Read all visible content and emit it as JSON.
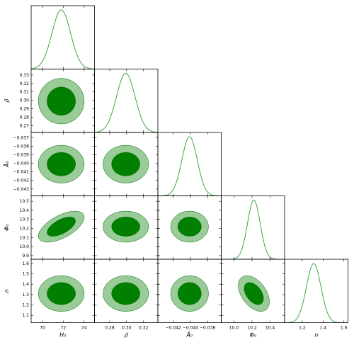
{
  "chart_data": {
    "type": "corner",
    "parameters": [
      {
        "label": "H₀",
        "range": [
          68.9,
          75.0
        ],
        "ticks": [
          70,
          72,
          74
        ],
        "tick_labels": [
          "70",
          "72",
          "74"
        ],
        "mean": 71.8,
        "sigma": 0.9
      },
      {
        "label": "ρ̃",
        "range": [
          0.262,
          0.337
        ],
        "ticks": [
          0.28,
          0.3,
          0.32
        ],
        "tick_labels": [
          "0.28",
          "0.30",
          "0.32"
        ],
        "mean": 0.299,
        "sigma": 0.011
      },
      {
        "label": "Å₀",
        "range": [
          -0.0438,
          -0.0364
        ],
        "ticks": [
          -0.042,
          -0.04,
          -0.038
        ],
        "y_ticks": [
          -0.043,
          -0.042,
          -0.041,
          -0.04,
          -0.039,
          -0.038,
          -0.037
        ],
        "tick_labels": [
          "−0.042",
          "−0.040",
          "−0.038"
        ],
        "y_tick_labels": [
          "−0.043",
          "−0.042",
          "−0.041",
          "−0.040",
          "−0.039",
          "−0.038",
          "−0.037"
        ],
        "mean": -0.0401,
        "sigma": 0.0009
      },
      {
        "label": "Φ₀",
        "range": [
          9.86,
          10.56
        ],
        "ticks": [
          10.0,
          10.2,
          10.4
        ],
        "y_ticks": [
          9.9,
          10.0,
          10.1,
          10.2,
          10.3,
          10.4,
          10.5
        ],
        "tick_labels": [
          "10.0",
          "10.2",
          "10.4"
        ],
        "y_tick_labels": [
          "9.9",
          "10.0",
          "10.1",
          "10.2",
          "10.3",
          "10.4",
          "10.5"
        ],
        "mean": 10.22,
        "sigma": 0.07
      },
      {
        "label": "n",
        "range": [
          1.03,
          1.64
        ],
        "ticks": [
          1.2,
          1.4,
          1.6
        ],
        "y_ticks": [
          1.1,
          1.2,
          1.3,
          1.4,
          1.5,
          1.6
        ],
        "tick_labels": [
          "1.2",
          "1.4",
          "1.6"
        ],
        "y_tick_labels": [
          "1.1",
          "1.2",
          "1.3",
          "1.4",
          "1.5",
          "1.6"
        ],
        "mean": 1.31,
        "sigma": 0.07
      }
    ],
    "y_tick_labels_rho": [
      "0.27",
      "0.28",
      "0.29",
      "0.30",
      "0.31",
      "0.32",
      "0.33"
    ],
    "y_ticks_rho": [
      0.27,
      0.28,
      0.29,
      0.3,
      0.31,
      0.32,
      0.33
    ],
    "correlations": {
      "3-0": 0.6,
      "4-3": -0.45
    },
    "contour_levels": [
      "68%",
      "95%"
    ],
    "colors": {
      "inner_fill": "#007f00",
      "outer_fill": "#99cc99",
      "line": "#2ca02c",
      "contour_edge": "#006400"
    }
  }
}
